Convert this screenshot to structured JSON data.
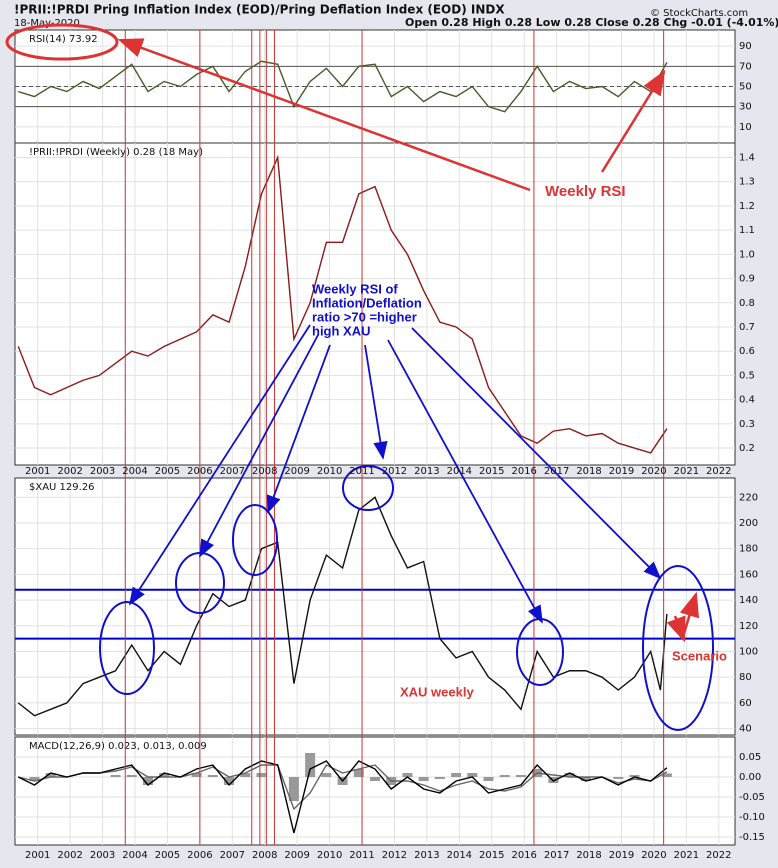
{
  "header": {
    "title": "!PRII:!PRDI Pring Inflation Index (EOD)/Pring Deflation Index (EOD) INDX",
    "date": "18-May-2020",
    "quote": "Open 0.28 High 0.28 Low 0.28 Close 0.28 Chg -0.01 (-4.01%)",
    "copyright": "© StockCharts.com"
  },
  "annotations": {
    "weekly_rsi": "Weekly RSI",
    "rsi_note": [
      "Weekly RSI of",
      "Inflation/Deflation",
      "ratio >70 =higher",
      "high XAU"
    ],
    "xau_weekly": "XAU weekly",
    "scenario": "Scenario"
  },
  "marker_lines": {
    "color": "#cc3333",
    "x": [
      2003.7,
      2006.0,
      2007.6,
      2007.85,
      2008.05,
      2008.3,
      2011.0,
      2016.3,
      2020.3
    ]
  },
  "chart_data": [
    {
      "type": "line",
      "label": "RSI(14) 73.92",
      "xlim": [
        2000.3,
        2022.5
      ],
      "xticks": [
        2001,
        2002,
        2003,
        2004,
        2005,
        2006,
        2007,
        2008,
        2009,
        2010,
        2011,
        2012,
        2013,
        2014,
        2015,
        2016,
        2017,
        2018,
        2019,
        2020,
        2021,
        2022
      ],
      "ylim": [
        -6,
        106
      ],
      "yticks": [
        10,
        30,
        50,
        70,
        90
      ],
      "hlines": [
        70,
        50,
        30
      ],
      "hline_color": "#555555",
      "x": [
        2000.4,
        2000.9,
        2001.4,
        2001.9,
        2002.4,
        2002.9,
        2003.4,
        2003.9,
        2004.4,
        2004.9,
        2005.4,
        2005.9,
        2006.4,
        2006.9,
        2007.4,
        2007.9,
        2008.4,
        2008.9,
        2009.4,
        2009.9,
        2010.4,
        2010.9,
        2011.4,
        2011.9,
        2012.4,
        2012.9,
        2013.4,
        2013.9,
        2014.4,
        2014.9,
        2015.4,
        2015.9,
        2016.4,
        2016.9,
        2017.4,
        2017.9,
        2018.4,
        2018.9,
        2019.4,
        2019.9,
        2020.4
      ],
      "series": [
        {
          "name": "RSI(14)",
          "color": "#4a5a2a",
          "style": "line",
          "values": [
            45,
            40,
            50,
            45,
            55,
            48,
            60,
            72,
            45,
            55,
            50,
            62,
            70,
            45,
            65,
            75,
            72,
            30,
            55,
            68,
            50,
            70,
            72,
            40,
            50,
            35,
            45,
            40,
            50,
            30,
            25,
            45,
            70,
            45,
            55,
            48,
            50,
            40,
            55,
            45,
            73.92
          ]
        }
      ]
    },
    {
      "type": "line",
      "label": "!PRII:!PRDI (Weekly) 0.28 (18 May)",
      "xlim": [
        2000.3,
        2022.5
      ],
      "xticks": [
        2001,
        2002,
        2003,
        2004,
        2005,
        2006,
        2007,
        2008,
        2009,
        2010,
        2011,
        2012,
        2013,
        2014,
        2015,
        2016,
        2017,
        2018,
        2019,
        2020,
        2021,
        2022
      ],
      "show_x_labels": true,
      "ylim": [
        0.13,
        1.46
      ],
      "yticks": [
        0.2,
        0.3,
        0.4,
        0.5,
        0.6,
        0.7,
        0.8,
        0.9,
        {
          "value": 1,
          "label": "1.0"
        },
        1.1,
        1.2,
        1.3,
        1.4
      ],
      "x": [
        2000.4,
        2000.9,
        2001.4,
        2001.9,
        2002.4,
        2002.9,
        2003.4,
        2003.9,
        2004.4,
        2004.9,
        2005.4,
        2005.9,
        2006.4,
        2006.9,
        2007.4,
        2007.9,
        2008.4,
        2008.9,
        2009.4,
        2009.9,
        2010.4,
        2010.9,
        2011.4,
        2011.9,
        2012.4,
        2012.9,
        2013.4,
        2013.9,
        2014.4,
        2014.9,
        2015.4,
        2015.9,
        2016.4,
        2016.9,
        2017.4,
        2017.9,
        2018.4,
        2018.9,
        2019.4,
        2019.9,
        2020.4
      ],
      "series": [
        {
          "name": "!PRII:!PRDI",
          "color": "#8b1a1a",
          "style": "line",
          "values": [
            0.62,
            0.45,
            0.42,
            0.45,
            0.48,
            0.5,
            0.55,
            0.6,
            0.58,
            0.62,
            0.65,
            0.68,
            0.75,
            0.72,
            0.95,
            1.25,
            1.4,
            0.65,
            0.8,
            1.05,
            1.05,
            1.25,
            1.28,
            1.1,
            1.0,
            0.85,
            0.72,
            0.7,
            0.65,
            0.45,
            0.35,
            0.25,
            0.22,
            0.27,
            0.28,
            0.25,
            0.26,
            0.22,
            0.2,
            0.18,
            0.28
          ]
        }
      ]
    },
    {
      "type": "line",
      "label": "$XAU 129.26",
      "xlim": [
        2000.3,
        2022.5
      ],
      "xticks": [
        2001,
        2002,
        2003,
        2004,
        2005,
        2006,
        2007,
        2008,
        2009,
        2010,
        2011,
        2012,
        2013,
        2014,
        2015,
        2016,
        2017,
        2018,
        2019,
        2020,
        2021,
        2022
      ],
      "ylim": [
        35,
        235
      ],
      "yticks": [
        40,
        60,
        80,
        100,
        120,
        140,
        160,
        180,
        200,
        220
      ],
      "hlines": [
        148,
        110
      ],
      "hline_color": "#0000cc",
      "x": [
        2000.4,
        2000.9,
        2001.4,
        2001.9,
        2002.4,
        2002.9,
        2003.4,
        2003.9,
        2004.4,
        2004.9,
        2005.4,
        2005.9,
        2006.4,
        2006.9,
        2007.4,
        2007.9,
        2008.4,
        2008.9,
        2009.4,
        2009.9,
        2010.4,
        2010.9,
        2011.4,
        2011.9,
        2012.4,
        2012.9,
        2013.4,
        2013.9,
        2014.4,
        2014.9,
        2015.4,
        2015.9,
        2016.4,
        2016.9,
        2017.4,
        2017.9,
        2018.4,
        2018.9,
        2019.4,
        2019.9,
        2020.2,
        2020.4
      ],
      "series": [
        {
          "name": "$XAU",
          "color": "#111111",
          "style": "line",
          "values": [
            60,
            50,
            55,
            60,
            75,
            80,
            85,
            105,
            85,
            100,
            90,
            120,
            145,
            135,
            140,
            180,
            185,
            75,
            140,
            175,
            165,
            210,
            220,
            190,
            165,
            170,
            110,
            95,
            100,
            80,
            70,
            55,
            100,
            80,
            85,
            85,
            80,
            70,
            80,
            100,
            70,
            129.26
          ]
        }
      ]
    },
    {
      "type": "line",
      "label": "MACD(12,26,9) 0.023, 0.013, 0.009",
      "xlim": [
        2000.3,
        2022.5
      ],
      "xticks": [
        2001,
        2002,
        2003,
        2004,
        2005,
        2006,
        2007,
        2008,
        2009,
        2010,
        2011,
        2012,
        2013,
        2014,
        2015,
        2016,
        2017,
        2018,
        2019,
        2020,
        2021,
        2022
      ],
      "show_x_labels": true,
      "ylim": [
        -0.17,
        0.1
      ],
      "yticks": [
        -0.15,
        {
          "value": -0.1,
          "label": "-0.10"
        },
        -0.05,
        {
          "value": 0,
          "label": "0.00"
        },
        0.05
      ],
      "x": [
        2000.4,
        2000.9,
        2001.4,
        2001.9,
        2002.4,
        2002.9,
        2003.4,
        2003.9,
        2004.4,
        2004.9,
        2005.4,
        2005.9,
        2006.4,
        2006.9,
        2007.4,
        2007.9,
        2008.4,
        2008.9,
        2009.4,
        2009.9,
        2010.4,
        2010.9,
        2011.4,
        2011.9,
        2012.4,
        2012.9,
        2013.4,
        2013.9,
        2014.4,
        2014.9,
        2015.4,
        2015.9,
        2016.4,
        2016.9,
        2017.4,
        2017.9,
        2018.4,
        2018.9,
        2019.4,
        2019.9,
        2020.4
      ],
      "series": [
        {
          "name": "Histogram",
          "color": "#999999",
          "style": "histogram",
          "values": [
            0,
            -0.01,
            0.01,
            0,
            0,
            0,
            0.005,
            0.005,
            -0.02,
            0.01,
            0,
            0.01,
            0.005,
            -0.02,
            0.01,
            0.01,
            0,
            -0.06,
            0.06,
            0.01,
            -0.02,
            0.02,
            -0.01,
            -0.02,
            0.01,
            -0.01,
            -0.005,
            0.01,
            0.01,
            -0.01,
            0.005,
            0.005,
            0.02,
            -0.015,
            0.01,
            -0.01,
            0,
            -0.005,
            0.005,
            0,
            0.009
          ]
        },
        {
          "name": "Signal",
          "color": "#666666",
          "style": "line",
          "values": [
            0,
            -0.01,
            0,
            0,
            0.01,
            0.01,
            0.015,
            0.025,
            0,
            0,
            0,
            0.01,
            0.025,
            0,
            0.01,
            0.03,
            0.03,
            -0.08,
            -0.04,
            0.03,
            0.01,
            0.02,
            0.03,
            -0.01,
            -0.01,
            -0.02,
            -0.035,
            -0.02,
            -0.01,
            -0.03,
            -0.035,
            -0.025,
            0.01,
            0.005,
            0,
            0,
            0,
            -0.015,
            -0.005,
            -0.01,
            0.013
          ]
        },
        {
          "name": "MACD",
          "color": "#000000",
          "style": "line",
          "values": [
            0,
            -0.02,
            0.01,
            0,
            0.01,
            0.01,
            0.02,
            0.03,
            -0.02,
            0.01,
            0,
            0.02,
            0.03,
            -0.02,
            0.02,
            0.04,
            0.03,
            -0.14,
            0.02,
            0.04,
            -0.01,
            0.04,
            0.02,
            -0.03,
            0,
            -0.03,
            -0.04,
            -0.01,
            0,
            -0.04,
            -0.03,
            -0.02,
            0.03,
            -0.01,
            0.01,
            -0.01,
            0,
            -0.02,
            0,
            -0.01,
            0.023
          ]
        }
      ]
    }
  ]
}
